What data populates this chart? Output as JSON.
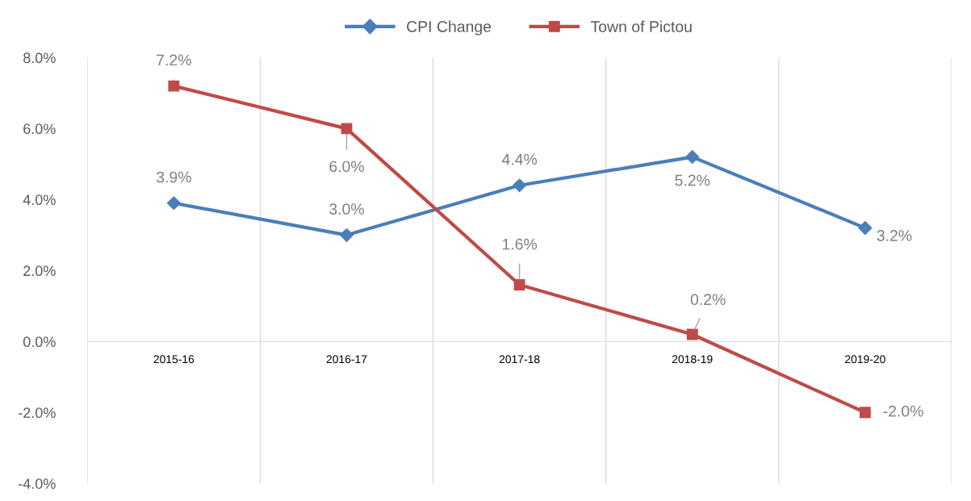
{
  "chart_data": {
    "type": "line",
    "categories": [
      "2015-16",
      "2016-17",
      "2017-18",
      "2018-19",
      "2019-20"
    ],
    "series": [
      {
        "name": "CPI Change",
        "color": "#4a7ebb",
        "marker": "diamond",
        "values": [
          3.9,
          3.0,
          4.4,
          5.2,
          3.2
        ],
        "value_labels": [
          "3.9%",
          "3.0%",
          "4.4%",
          "5.2%",
          "3.2%"
        ]
      },
      {
        "name": "Town of Pictou",
        "color": "#be4b48",
        "marker": "square",
        "values": [
          7.2,
          6.0,
          1.6,
          0.2,
          -2.0
        ],
        "value_labels": [
          "7.2%",
          "6.0%",
          "1.6%",
          "0.2%",
          "-2.0%"
        ]
      }
    ],
    "ylim": [
      -4,
      8
    ],
    "yticks": [
      {
        "value": -4,
        "label": "-4.0%"
      },
      {
        "value": -2,
        "label": "-2.0%"
      },
      {
        "value": 0,
        "label": "0.0%"
      },
      {
        "value": 2,
        "label": "2.0%"
      },
      {
        "value": 4,
        "label": "4.0%"
      },
      {
        "value": 6,
        "label": "6.0%"
      },
      {
        "value": 8,
        "label": "8.0%"
      }
    ],
    "grid": "x",
    "legend": "top",
    "line_style": "solid"
  }
}
